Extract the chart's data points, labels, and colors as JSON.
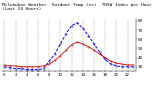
{
  "title": "Milwaukee Weather  Outdoor Temp (vs)  THSW Index per Hour (Last 24 Hours)",
  "hours": [
    0,
    1,
    2,
    3,
    4,
    5,
    6,
    7,
    8,
    9,
    10,
    11,
    12,
    13,
    14,
    15,
    16,
    17,
    18,
    19,
    20,
    21,
    22,
    23
  ],
  "temp": [
    32,
    31,
    31,
    30,
    30,
    30,
    30,
    31,
    33,
    37,
    42,
    48,
    54,
    57,
    55,
    52,
    48,
    44,
    40,
    36,
    34,
    33,
    32,
    32
  ],
  "thsw": [
    30,
    29,
    28,
    28,
    27,
    27,
    27,
    28,
    36,
    44,
    55,
    66,
    75,
    78,
    72,
    64,
    55,
    46,
    38,
    33,
    31,
    30,
    30,
    30
  ],
  "temp_color": "#cc0000",
  "thsw_color": "#0000ee",
  "bg_color": "#ffffff",
  "grid_color": "#888888",
  "ylim_min": 25,
  "ylim_max": 82,
  "ytick_values": [
    30,
    40,
    50,
    60,
    70,
    80
  ],
  "ytick_labels": [
    "30",
    "40",
    "50",
    "60",
    "70",
    "80"
  ],
  "ylabel_fontsize": 3.0,
  "title_fontsize": 3.2,
  "xlabel_fontsize": 2.8
}
